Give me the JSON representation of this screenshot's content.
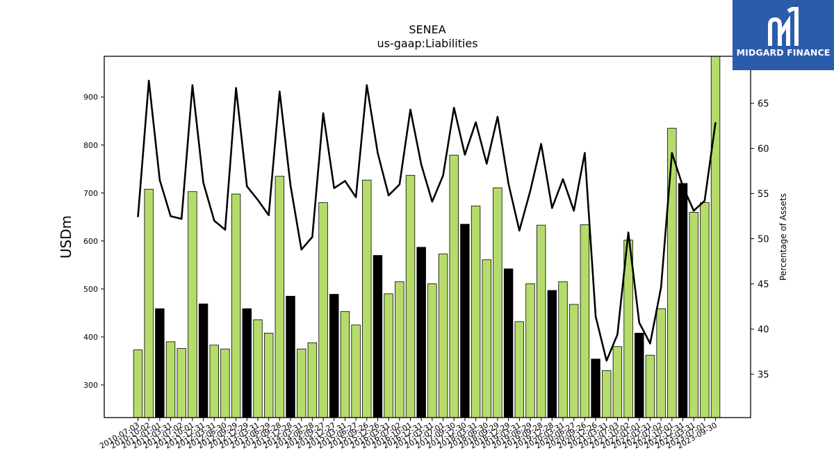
{
  "chart_data": {
    "type": "bar",
    "title": "SENEA",
    "subtitle": "us-gaap:Liabilities",
    "ylabel": "USDm",
    "y2label": "Percentage of Assets",
    "ylim": [
      232,
      985
    ],
    "y2lim": [
      30.2,
      70.2
    ],
    "yticks": [
      300,
      400,
      500,
      600,
      700,
      800,
      900
    ],
    "y2ticks": [
      35,
      40,
      45,
      50,
      55,
      60,
      65
    ],
    "colors": {
      "annual": "#000000",
      "quarter": "#b5dc6a",
      "line": "#000000"
    },
    "categories": [
      "2010-07-03",
      "2010-10-02",
      "2011-01-01",
      "2011-03-31",
      "2011-07-02",
      "2011-10-01",
      "2011-12-31",
      "2012-03-31",
      "2012-06-30",
      "2012-09-29",
      "2012-12-29",
      "2013-03-31",
      "2013-06-29",
      "2013-09-28",
      "2013-12-28",
      "2014-03-31",
      "2014-06-28",
      "2014-09-27",
      "2014-12-27",
      "2015-03-31",
      "2015-06-27",
      "2015-09-26",
      "2015-12-26",
      "2016-03-31",
      "2016-07-02",
      "2016-10-01",
      "2016-12-31",
      "2017-03-31",
      "2017-07-01",
      "2017-09-30",
      "2017-12-30",
      "2018-03-31",
      "2018-06-30",
      "2018-09-29",
      "2018-12-29",
      "2019-03-31",
      "2019-06-29",
      "2019-09-28",
      "2019-12-28",
      "2020-03-31",
      "2020-06-27",
      "2020-09-26",
      "2020-12-26",
      "2021-03-31",
      "2021-07-03",
      "2021-10-02",
      "2022-01-01",
      "2022-03-31",
      "2022-07-02",
      "2022-10-01",
      "2022-12-31",
      "2023-03-31",
      "2023-07-01",
      "2023-09-30"
    ],
    "xtick_labels": [
      "2010-07-03",
      "2010-10-02",
      "2011-01-01",
      "2011-03-31",
      "2011-07-02",
      "2011-10-01",
      "2011-12-31",
      "2012-03-31",
      "2012-06-30",
      "2012-09-29",
      "2012-12-29",
      "2013-03-31",
      "2013-06-29",
      "2013-09-28",
      "2013-12-28",
      "2014-03-31",
      "2014-06-28",
      "2014-09-27",
      "2014-12-27",
      "2015-03-31",
      "2015-06-27",
      "2015-09-26",
      "2015-12-26",
      "2016-03-31",
      "2016-07-02",
      "2016-10-01",
      "2016-12-31",
      "2017-03-31",
      "2017-07-01",
      "2017-09-30",
      "2017-12-30",
      "2018-03-31",
      "2018-06-30",
      "2018-09-29",
      "2018-12-29",
      "2019-03-31",
      "2019-06-29",
      "2019-09-28",
      "2019-12-28",
      "2020-03-31",
      "2020-06-27",
      "2020-09-26",
      "2020-12-26",
      "2021-03-31",
      "2021-07-03",
      "2021-10-02",
      "2022-01-01",
      "2022-03-31",
      "2022-07-02",
      "2022-10-01",
      "2022-12-31",
      "2023-03-31",
      "2023-07-01",
      "2023-09-30"
    ],
    "series": [
      {
        "type": "bar",
        "values": [
          373,
          708,
          459,
          390,
          376,
          703,
          469,
          383,
          375,
          698,
          459,
          436,
          408,
          735,
          485,
          375,
          388,
          680,
          489,
          453,
          425,
          727,
          570,
          490,
          515,
          737,
          587,
          511,
          573,
          779,
          635,
          673,
          561,
          711,
          542,
          432,
          511,
          633,
          497,
          515,
          468,
          634,
          354,
          330,
          380,
          602,
          408,
          362,
          459,
          835,
          720,
          660,
          680,
          989
        ],
        "highlight": [
          false,
          false,
          true,
          false,
          false,
          false,
          true,
          false,
          false,
          false,
          true,
          false,
          false,
          false,
          true,
          false,
          false,
          false,
          true,
          false,
          false,
          false,
          true,
          false,
          false,
          false,
          true,
          false,
          false,
          false,
          true,
          false,
          false,
          false,
          true,
          false,
          false,
          false,
          true,
          false,
          false,
          false,
          true,
          false,
          false,
          false,
          true,
          false,
          false,
          false,
          true,
          false,
          false,
          false
        ]
      },
      {
        "type": "line",
        "axis": "right",
        "values": [
          52.4,
          67.5,
          56.5,
          52.5,
          52.2,
          67.0,
          56.2,
          52.0,
          51.0,
          66.7,
          55.8,
          54.3,
          52.6,
          66.3,
          55.9,
          48.8,
          50.2,
          63.9,
          55.6,
          56.4,
          54.6,
          67.0,
          59.5,
          54.8,
          56.0,
          64.3,
          58.2,
          54.1,
          57.0,
          64.5,
          59.3,
          62.9,
          58.3,
          63.5,
          56.1,
          50.9,
          55.3,
          60.5,
          53.4,
          56.6,
          53.1,
          59.5,
          41.4,
          36.5,
          39.4,
          50.7,
          40.7,
          38.4,
          44.6,
          59.5,
          55.8,
          53.1,
          54.2,
          62.9
        ]
      }
    ]
  },
  "logo": {
    "text": "MIDGARD FINANCE"
  }
}
